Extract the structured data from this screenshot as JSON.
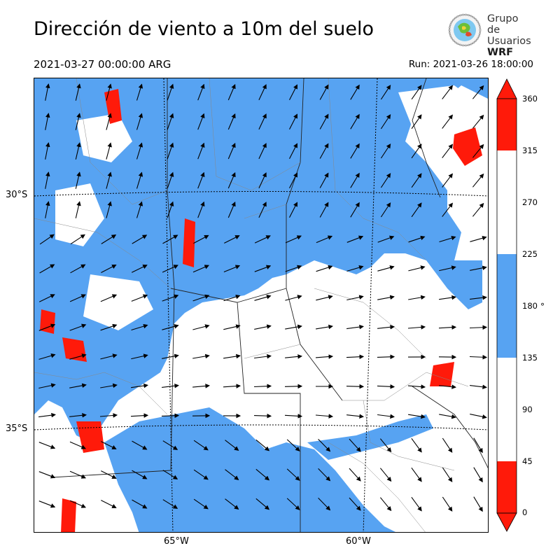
{
  "title": "Dirección de viento a 10m del suelo",
  "subtitle_left": "2021-03-27 00:00:00 ARG",
  "subtitle_right": "Run: 2021-03-26 18:00:00",
  "logo": {
    "line1": "Grupo de",
    "line2": "Usuarios",
    "line3": "WRF"
  },
  "axes": {
    "lat_labels": [
      "30°S",
      "35°S"
    ],
    "lon_labels": [
      "65°W",
      "60°W"
    ]
  },
  "colorbar": {
    "ticks": [
      "360",
      "315",
      "270",
      "225",
      "180",
      "135",
      "90",
      "45",
      "0"
    ],
    "unit": "°",
    "colors": {
      "red": "#ff1a0a",
      "white": "#ffffff",
      "blue": "#57a3f2"
    }
  },
  "chart_data": {
    "type": "heatmap",
    "title": "Dirección de viento a 10m del suelo",
    "variable": "Dirección de viento a 10m",
    "units": "°",
    "levels": [
      0,
      45,
      90,
      135,
      180,
      225,
      270,
      315,
      360
    ],
    "level_colors": [
      "red",
      "white",
      "white",
      "blue",
      "blue",
      "white",
      "white",
      "red"
    ],
    "x_ticks": [
      "65°W",
      "60°W"
    ],
    "y_ticks": [
      "30°S",
      "35°S"
    ]
  }
}
